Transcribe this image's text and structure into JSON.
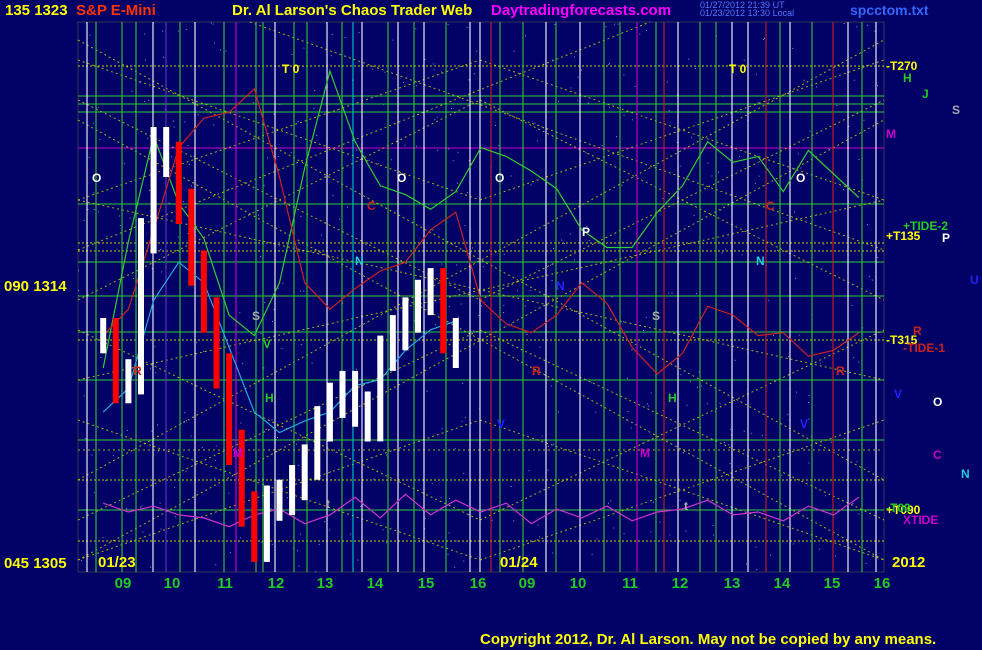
{
  "header": {
    "price_top": "135  1323",
    "instrument": "S&P E-Mini",
    "title": "Dr. Al Larson's Chaos Trader Web",
    "site": "Daytradingforecasts.com",
    "timestamp_1": "01/27/2012 21:39 UT",
    "timestamp_2": "01/23/2012 13:30 Local",
    "file": "spcctom.txt"
  },
  "footer": {
    "copyright": "Copyright 2012, Dr. Al Larson. May not be copied by any means."
  },
  "colors": {
    "background": "#000066",
    "grid_yellow": "#cccc00",
    "grid_green": "#33cc33",
    "white_line": "#ffffff",
    "red_line": "#cc2222",
    "cyan_line": "#00cccc",
    "magenta_line": "#cc00cc",
    "purple_line": "#6633cc",
    "price_bar": "#ffffff",
    "price_bar_down": "#ff0000",
    "field_green": "#33cc33",
    "field_red": "#cc2222",
    "field_cyan": "#22aadd",
    "xtide": "#cc33cc"
  },
  "chart_data": {
    "type": "line",
    "title": "S&P E-Mini",
    "xlabel": "",
    "ylabel": "",
    "x_ticks": [
      "09",
      "10",
      "11",
      "12",
      "13",
      "14",
      "15",
      "16",
      "09",
      "10",
      "11",
      "12",
      "13",
      "14",
      "15",
      "16"
    ],
    "date_labels": [
      "01/23",
      "01/24"
    ],
    "year_label": "2012",
    "y_ticks": [
      {
        "angle": "135",
        "price": "1323"
      },
      {
        "angle": "090",
        "price": "1314"
      },
      {
        "angle": "045",
        "price": "1305"
      }
    ],
    "ylim": [
      1305,
      1323
    ],
    "markers": [
      "T 0",
      "T 0"
    ],
    "left_labels": [
      "O",
      "C",
      "N",
      "S",
      "V",
      "H",
      "M",
      "R",
      "O",
      "t",
      "O",
      "P",
      "N",
      "S",
      "V",
      "H",
      "M",
      "R",
      "O",
      "C",
      "N",
      "V",
      "t",
      "R"
    ],
    "right_labels": [
      "-T270",
      "H",
      "J",
      "S",
      "M",
      "+TIDE-2",
      "+T135",
      "P",
      "U",
      "-T315",
      "R",
      "-TIDE-1",
      "V",
      "O",
      "C",
      "N",
      "+T090",
      "-T00",
      "XTIDE"
    ],
    "series": [
      {
        "name": "S&P E-Mini",
        "type": "price",
        "x": [
          9.0,
          9.25,
          9.5,
          9.75,
          10.0,
          10.25,
          10.5,
          10.75,
          11.0,
          11.25,
          11.5,
          11.75,
          12.0,
          12.25,
          12.5,
          12.75,
          13.0,
          13.25,
          13.5,
          13.75,
          14.0,
          14.25,
          14.5,
          14.75,
          15.0,
          15.25,
          15.5,
          15.75,
          16.0
        ],
        "values": [
          1312.6,
          1310.9,
          1311.2,
          1316.0,
          1319.1,
          1318.6,
          1317.0,
          1314.9,
          1313.3,
          1311.4,
          1308.8,
          1306.7,
          1305.5,
          1306.9,
          1307.1,
          1307.6,
          1308.3,
          1309.6,
          1310.4,
          1310.8,
          1310.1,
          1309.6,
          1312.0,
          1312.7,
          1313.3,
          1313.9,
          1314.3,
          1312.6,
          1312.1
        ]
      },
      {
        "name": "+TIDE-2",
        "type": "field",
        "x": [
          9.0,
          9.5,
          10.0,
          10.5,
          11.0,
          11.5,
          12.0,
          12.5,
          13.0,
          13.5,
          14.0,
          14.5,
          15.0,
          15.5,
          16.0,
          16.5,
          17.0,
          17.5,
          18.0,
          18.5,
          19.0,
          19.5,
          20.0,
          20.5,
          21.0,
          21.5,
          22.0,
          22.5,
          23.0,
          23.5,
          24.0
        ],
        "values": [
          1311.5,
          1315.8,
          1319.4,
          1317.1,
          1315.9,
          1313.3,
          1312.6,
          1314.4,
          1318.3,
          1321.6,
          1319.2,
          1317.7,
          1317.4,
          1316.9,
          1317.5,
          1319.0,
          1318.7,
          1318.2,
          1317.6,
          1316.2,
          1315.6,
          1315.6,
          1316.8,
          1317.7,
          1319.2,
          1318.5,
          1318.7,
          1317.5,
          1318.9,
          1318.1,
          1317.3
        ]
      },
      {
        "name": "-TIDE-1",
        "type": "field",
        "x": [
          9.0,
          9.5,
          10.0,
          10.5,
          11.0,
          11.5,
          12.0,
          12.5,
          13.0,
          13.5,
          14.0,
          14.5,
          15.0,
          15.5,
          16.0,
          16.5,
          17.0,
          17.5,
          18.0,
          18.5,
          19.0,
          19.5,
          20.0,
          20.5,
          21.0,
          21.5,
          22.0,
          22.5,
          23.0,
          23.5,
          24.0
        ],
        "values": [
          1312.6,
          1313.5,
          1316.2,
          1319.0,
          1320.0,
          1320.2,
          1321.0,
          1318.0,
          1314.4,
          1313.5,
          1314.2,
          1314.8,
          1315.1,
          1316.2,
          1316.8,
          1313.8,
          1313.0,
          1312.7,
          1313.3,
          1314.4,
          1313.7,
          1312.2,
          1311.3,
          1312.0,
          1313.6,
          1313.3,
          1312.6,
          1312.7,
          1311.9,
          1312.1,
          1312.7
        ]
      },
      {
        "name": "XTIDE",
        "type": "field",
        "x": [
          9.0,
          9.5,
          10.0,
          10.5,
          11.0,
          11.5,
          12.0,
          12.5,
          13.0,
          13.5,
          14.0,
          14.5,
          15.0,
          15.5,
          16.0,
          16.5,
          17.0,
          17.5,
          18.0,
          18.5,
          19.0,
          19.5,
          20.0,
          20.5,
          21.0,
          21.5,
          22.0,
          22.5,
          23.0,
          23.5,
          24.0
        ],
        "values": [
          1306.9,
          1306.6,
          1306.8,
          1306.5,
          1306.4,
          1306.1,
          1306.5,
          1306.7,
          1306.2,
          1306.5,
          1307.1,
          1306.4,
          1307.2,
          1306.5,
          1307.0,
          1306.6,
          1306.9,
          1306.2,
          1306.7,
          1306.4,
          1306.8,
          1306.3,
          1306.6,
          1306.7,
          1307.0,
          1306.5,
          1306.6,
          1306.3,
          1306.8,
          1306.5,
          1307.1
        ]
      },
      {
        "name": "",
        "type": "field",
        "x": [
          9.0,
          9.5,
          10.0,
          10.5,
          11.0,
          11.5,
          12.0,
          12.5,
          13.0,
          13.5,
          14.0,
          14.5,
          15.0,
          15.5,
          16.0
        ],
        "values": [
          1310.0,
          1310.8,
          1313.8,
          1315.1,
          1314.4,
          1312.2,
          1310.0,
          1309.3,
          1309.7,
          1310.0,
          1310.9,
          1311.1,
          1312.1,
          1312.8,
          1313.1
        ]
      }
    ]
  }
}
